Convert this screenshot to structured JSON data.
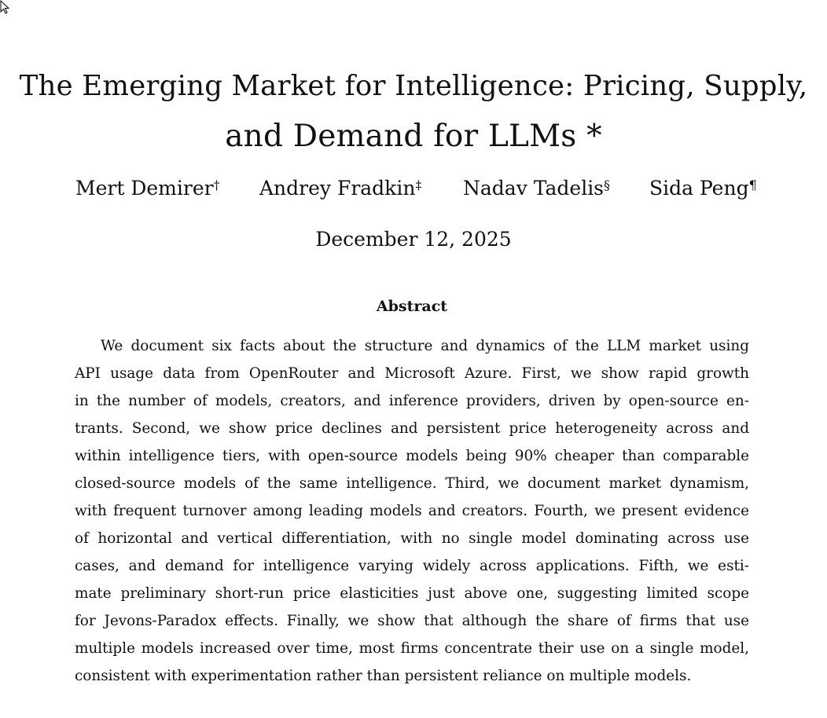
{
  "title": {
    "line1": "The Emerging Market for Intelligence: Pricing, Supply,",
    "line2": "and Demand for LLMs *"
  },
  "authors": [
    {
      "name": "Mert Demirer",
      "mark": "†"
    },
    {
      "name": "Andrey Fradkin",
      "mark": "‡"
    },
    {
      "name": "Nadav Tadelis",
      "mark": "§"
    },
    {
      "name": "Sida Peng",
      "mark": "¶"
    }
  ],
  "date": "December 12, 2025",
  "abstract": {
    "heading": "Abstract",
    "lines": [
      "We document six facts about the structure and dynamics of the LLM market using",
      "API usage data from OpenRouter and Microsoft Azure. First, we show rapid growth",
      "in the number of models, creators, and inference providers, driven by open-source en-",
      "trants. Second, we show price declines and persistent price heterogeneity across and",
      "within intelligence tiers, with open-source models being 90% cheaper than comparable",
      "closed-source models of the same intelligence. Third, we document market dynamism,",
      "with frequent turnover among leading models and creators. Fourth, we present evidence",
      "of horizontal and vertical differentiation, with no single model dominating across use",
      "cases, and demand for intelligence varying widely across applications. Fifth, we esti-",
      "mate preliminary short-run price elasticities just above one, suggesting limited scope",
      "for Jevons-Paradox effects. Finally, we show that although the share of firms that use",
      "multiple models increased over time, most firms concentrate their use on a single model,",
      "consistent with experimentation rather than persistent reliance on multiple models."
    ]
  }
}
